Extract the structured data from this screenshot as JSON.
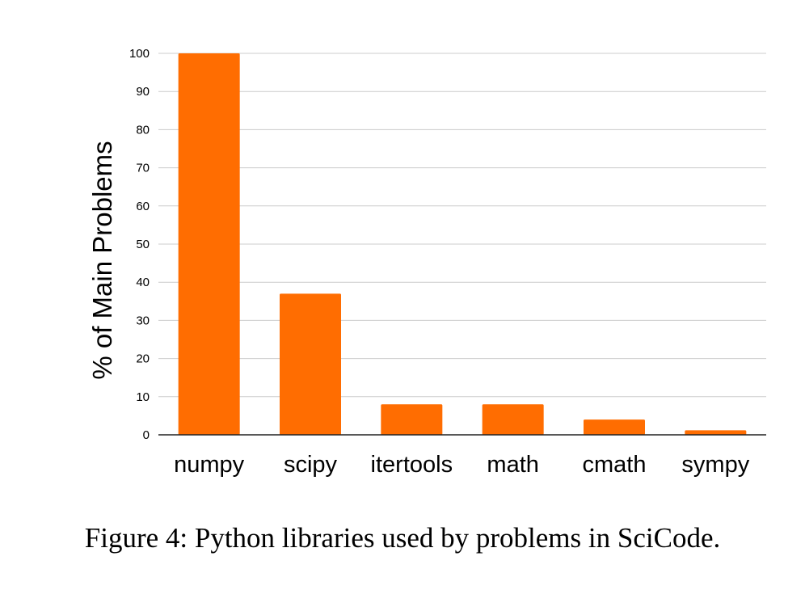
{
  "chart_data": {
    "type": "bar",
    "categories": [
      "numpy",
      "scipy",
      "itertools",
      "math",
      "cmath",
      "sympy"
    ],
    "values": [
      100,
      37,
      8,
      8,
      4,
      1.2
    ],
    "title": "",
    "xlabel": "",
    "ylabel": "% of Main Problems",
    "ylim": [
      0,
      100
    ],
    "yticks": [
      "0",
      "10",
      "20",
      "30",
      "40",
      "50",
      "60",
      "70",
      "80",
      "90",
      "100"
    ],
    "grid": true,
    "bar_color": "#ff6d01"
  },
  "caption": "Figure 4: Python libraries used by problems in SciCode."
}
